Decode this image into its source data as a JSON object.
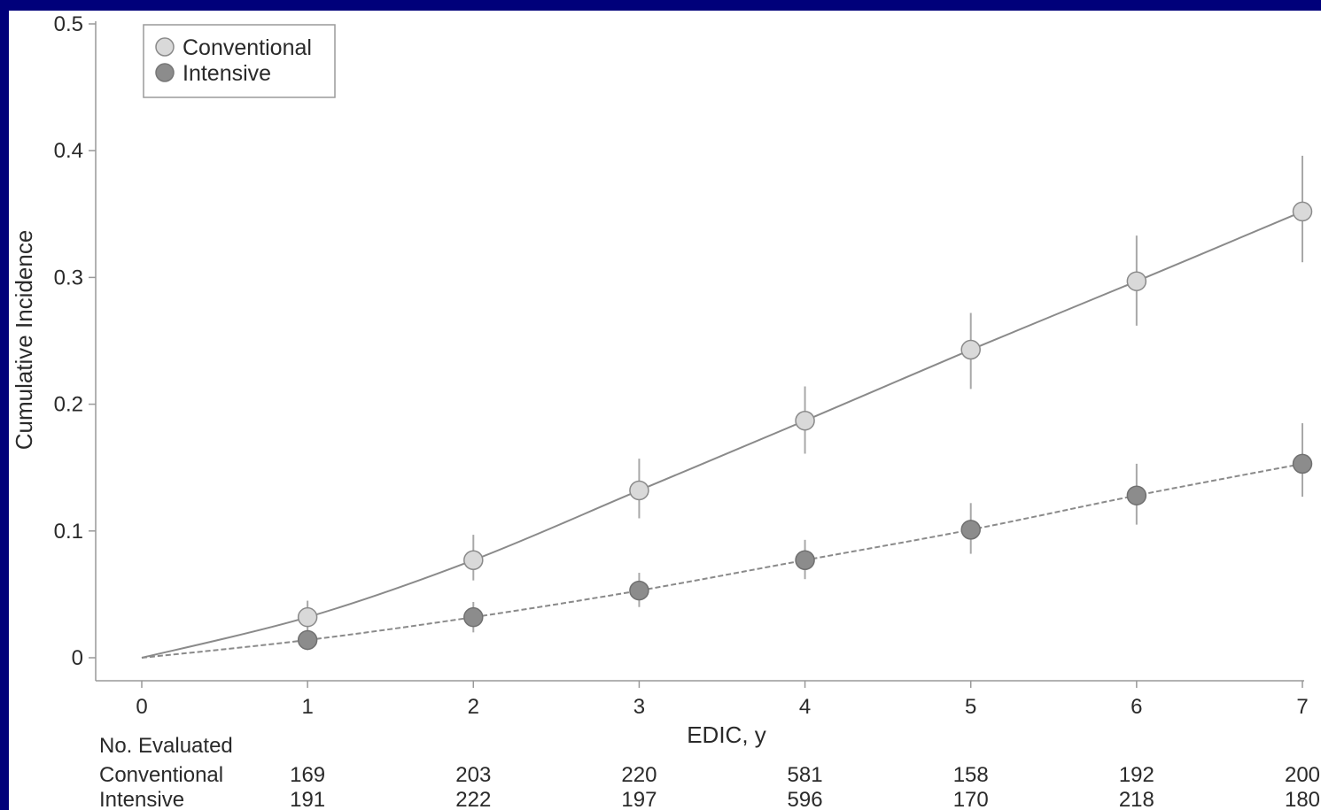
{
  "colors": {
    "frame_border": "#00007a",
    "background": "#ffffff",
    "axis": "#999999",
    "line": "#8a8a8a",
    "conventional_marker": "#d9d9d9",
    "intensive_marker": "#8c8c8c"
  },
  "chart_data": {
    "type": "line",
    "title": "",
    "xlabel": "EDIC, y",
    "ylabel": "Cumulative Incidence",
    "xlim": [
      0,
      7
    ],
    "ylim": [
      0,
      0.5
    ],
    "x_ticks": [
      {
        "value": 0,
        "label": "0"
      },
      {
        "value": 1,
        "label": "1"
      },
      {
        "value": 2,
        "label": "2"
      },
      {
        "value": 3,
        "label": "3"
      },
      {
        "value": 4,
        "label": "4"
      },
      {
        "value": 5,
        "label": "5"
      },
      {
        "value": 6,
        "label": "6"
      },
      {
        "value": 7,
        "label": "7"
      }
    ],
    "y_ticks": [
      {
        "value": 0,
        "label": "0"
      },
      {
        "value": 0.1,
        "label": "0.1"
      },
      {
        "value": 0.2,
        "label": "0.2"
      },
      {
        "value": 0.3,
        "label": "0.3"
      },
      {
        "value": 0.4,
        "label": "0.4"
      },
      {
        "value": 0.5,
        "label": "0.5"
      }
    ],
    "grid": false,
    "legend_position": "top-left",
    "x": [
      1,
      2,
      3,
      4,
      5,
      6,
      7
    ],
    "series": [
      {
        "name": "Conventional",
        "marker_color": "#d9d9d9",
        "values": [
          0.032,
          0.077,
          0.132,
          0.187,
          0.243,
          0.297,
          0.352
        ],
        "lower": [
          0.02,
          0.061,
          0.11,
          0.161,
          0.212,
          0.262,
          0.312
        ],
        "upper": [
          0.045,
          0.097,
          0.157,
          0.214,
          0.272,
          0.333,
          0.396
        ]
      },
      {
        "name": "Intensive",
        "marker_color": "#8c8c8c",
        "values": [
          0.014,
          0.032,
          0.053,
          0.077,
          0.101,
          0.128,
          0.153
        ],
        "lower": [
          0.006,
          0.02,
          0.04,
          0.062,
          0.082,
          0.105,
          0.127
        ],
        "upper": [
          0.022,
          0.044,
          0.067,
          0.093,
          0.122,
          0.153,
          0.185
        ]
      }
    ],
    "evaluated_table": {
      "header": "No. Evaluated",
      "rows": [
        {
          "label": "Conventional",
          "values": [
            "169",
            "203",
            "220",
            "581",
            "158",
            "192",
            "200"
          ]
        },
        {
          "label": "Intensive",
          "values": [
            "191",
            "222",
            "197",
            "596",
            "170",
            "218",
            "180"
          ]
        }
      ]
    }
  }
}
